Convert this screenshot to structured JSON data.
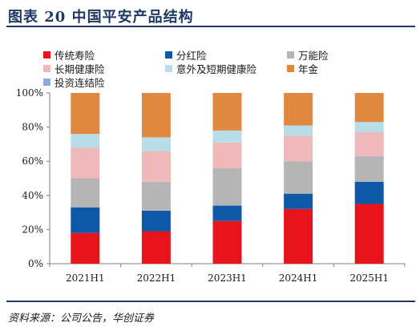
{
  "figure": {
    "title": "图表 20    中国平安产品结构",
    "source": "资料来源：公司公告，华创证券"
  },
  "chart_data": {
    "type": "bar",
    "stacked": true,
    "percent": true,
    "categories": [
      "2021H1",
      "2022H1",
      "2023H1",
      "2024H1",
      "2025H1"
    ],
    "y_ticks": [
      "0%",
      "20%",
      "40%",
      "60%",
      "80%",
      "100%"
    ],
    "ylim": [
      0,
      100
    ],
    "grid": false,
    "legend_position": "top",
    "series": [
      {
        "name": "传统寿险",
        "color": "#e8141c",
        "values": [
          18,
          19,
          25,
          32,
          35
        ]
      },
      {
        "name": "分红险",
        "color": "#0e58a8",
        "values": [
          15,
          12,
          9,
          9,
          13
        ]
      },
      {
        "name": "万能险",
        "color": "#b5b5b5",
        "values": [
          17,
          17,
          22,
          19,
          15
        ]
      },
      {
        "name": "长期健康险",
        "color": "#efb8ba",
        "values": [
          18,
          18,
          15,
          15,
          14
        ]
      },
      {
        "name": "意外及短期健康险",
        "color": "#b7dde8",
        "values": [
          8,
          8,
          7,
          6,
          6
        ]
      },
      {
        "name": "年金",
        "color": "#e0883f",
        "values": [
          24,
          26,
          22,
          19,
          17
        ]
      },
      {
        "name": "投资连结险",
        "color": "#8eaadb",
        "values": [
          0,
          0,
          0,
          0,
          0
        ]
      }
    ]
  }
}
